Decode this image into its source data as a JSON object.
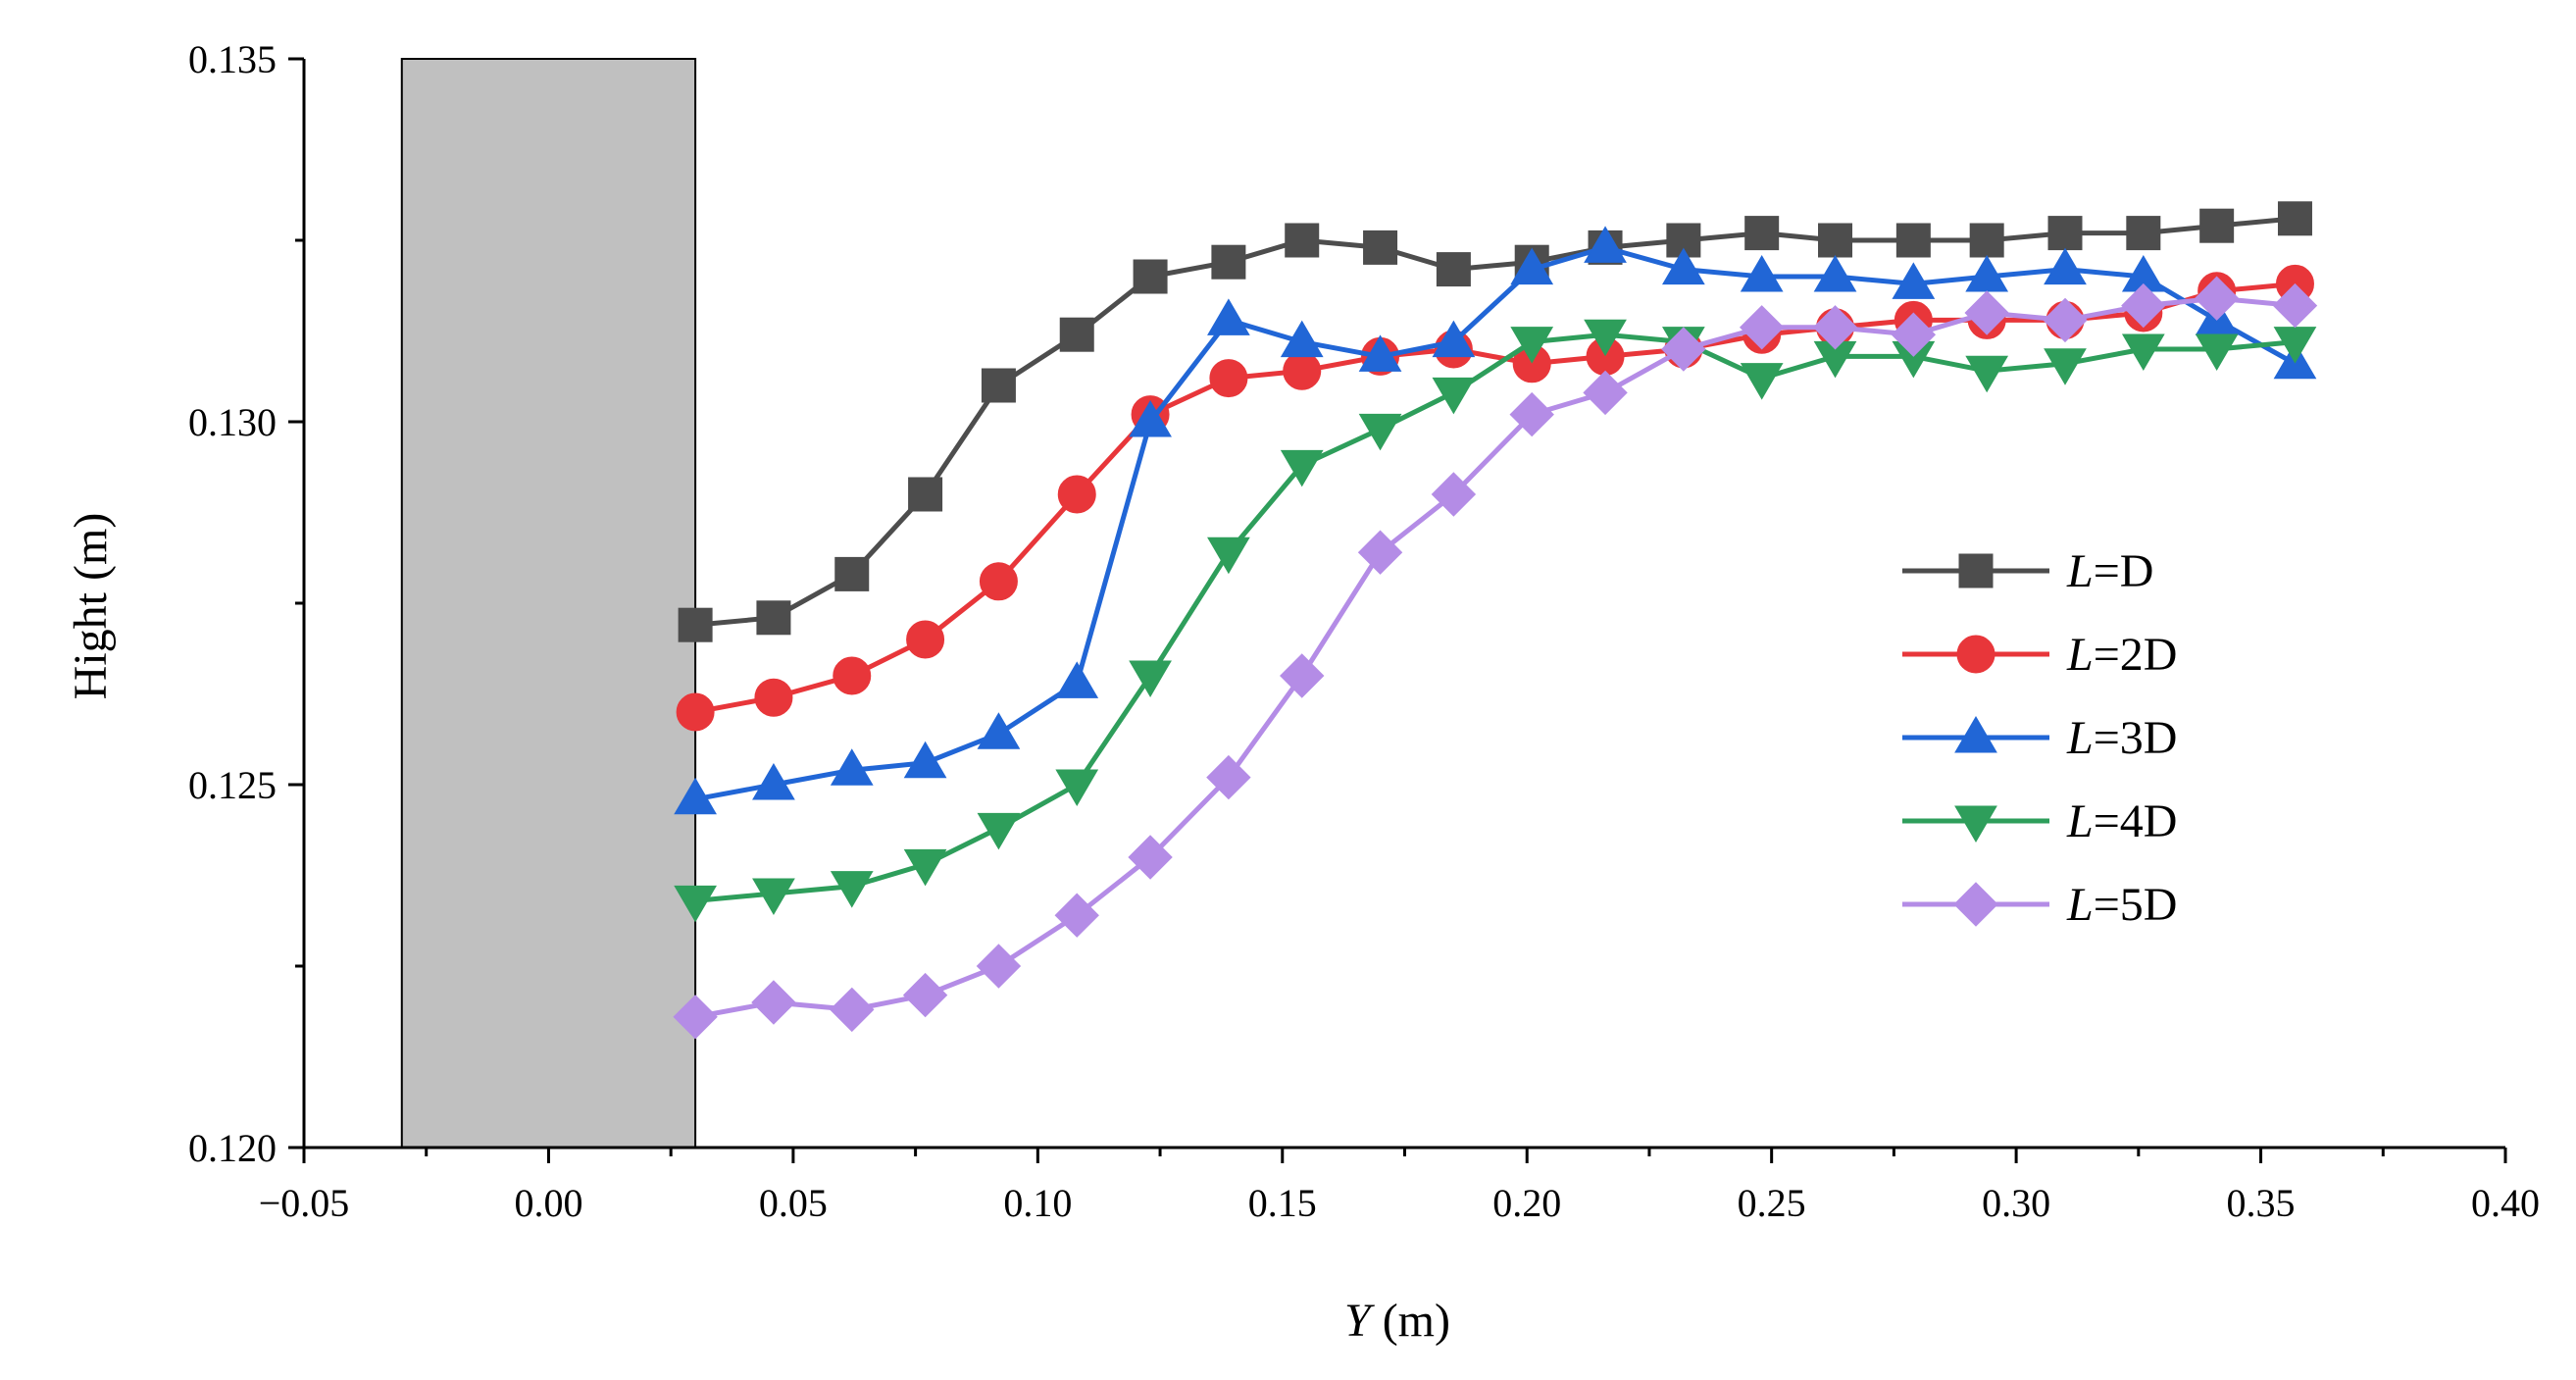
{
  "chart_data": {
    "type": "line",
    "title": "",
    "xlabel": {
      "italic": "Y",
      "rest": " (m)"
    },
    "ylabel": "Hight (m)",
    "xlim": [
      -0.05,
      0.4
    ],
    "ylim": [
      0.12,
      0.135
    ],
    "xticks": [
      -0.05,
      0.0,
      0.05,
      0.1,
      0.15,
      0.2,
      0.25,
      0.3,
      0.35,
      0.4
    ],
    "xtick_labels": [
      "−0.05",
      "0.00",
      "0.05",
      "0.10",
      "0.15",
      "0.20",
      "0.25",
      "0.30",
      "0.35",
      "0.40"
    ],
    "yticks": [
      0.12,
      0.125,
      0.13,
      0.135
    ],
    "ytick_labels": [
      "0.120",
      "0.125",
      "0.130",
      "0.135"
    ],
    "grid": false,
    "legend_position": "center-right",
    "obstacle": {
      "x_from": -0.03,
      "x_to": 0.03,
      "y_from": 0.12,
      "y_to": 0.135,
      "color": "#c0c0c0"
    },
    "x": [
      0.03,
      0.046,
      0.062,
      0.077,
      0.092,
      0.108,
      0.123,
      0.139,
      0.154,
      0.17,
      0.185,
      0.201,
      0.216,
      0.232,
      0.248,
      0.263,
      0.279,
      0.294,
      0.31,
      0.326,
      0.341,
      0.357
    ],
    "series": [
      {
        "name": "L=D",
        "label_italic": "L",
        "label_rest": "=D",
        "color": "#4d4d4d",
        "marker": "square",
        "values": [
          0.1272,
          0.1273,
          0.1279,
          0.129,
          0.1305,
          0.1312,
          0.132,
          0.1322,
          0.1325,
          0.1324,
          0.1321,
          0.1322,
          0.1324,
          0.1325,
          0.1326,
          0.1325,
          0.1325,
          0.1325,
          0.1326,
          0.1326,
          0.1327,
          0.1328
        ]
      },
      {
        "name": "L=2D",
        "label_italic": "L",
        "label_rest": "=2D",
        "color": "#e8363a",
        "marker": "circle",
        "values": [
          0.126,
          0.1262,
          0.1265,
          0.127,
          0.1278,
          0.129,
          0.1301,
          0.1306,
          0.1307,
          0.1309,
          0.131,
          0.1308,
          0.1309,
          0.131,
          0.1312,
          0.1313,
          0.1314,
          0.1314,
          0.1314,
          0.1315,
          0.1318,
          0.1319
        ]
      },
      {
        "name": "L=3D",
        "label_italic": "L",
        "label_rest": "=3D",
        "color": "#2166d6",
        "marker": "triangle-up",
        "values": [
          0.1248,
          0.125,
          0.1252,
          0.1253,
          0.1257,
          0.1264,
          0.13,
          0.1314,
          0.1311,
          0.1309,
          0.1311,
          0.1321,
          0.1324,
          0.1321,
          0.132,
          0.132,
          0.1319,
          0.132,
          0.1321,
          0.132,
          0.1314,
          0.1308
        ]
      },
      {
        "name": "L=4D",
        "label_italic": "L",
        "label_rest": "=4D",
        "color": "#2e9e5b",
        "marker": "triangle-down",
        "values": [
          0.1234,
          0.1235,
          0.1236,
          0.1239,
          0.1244,
          0.125,
          0.1265,
          0.1282,
          0.1294,
          0.1299,
          0.1304,
          0.1311,
          0.1312,
          0.1311,
          0.1306,
          0.1309,
          0.1309,
          0.1307,
          0.1308,
          0.131,
          0.131,
          0.1311
        ]
      },
      {
        "name": "L=5D",
        "label_italic": "L",
        "label_rest": "=5D",
        "color": "#b48ce6",
        "marker": "diamond",
        "values": [
          0.1218,
          0.122,
          0.1219,
          0.1221,
          0.1225,
          0.1232,
          0.124,
          0.1251,
          0.1265,
          0.1282,
          0.129,
          0.1301,
          0.1304,
          0.131,
          0.1313,
          0.1313,
          0.1312,
          0.1315,
          0.1314,
          0.1316,
          0.1317,
          0.1316
        ]
      }
    ]
  }
}
